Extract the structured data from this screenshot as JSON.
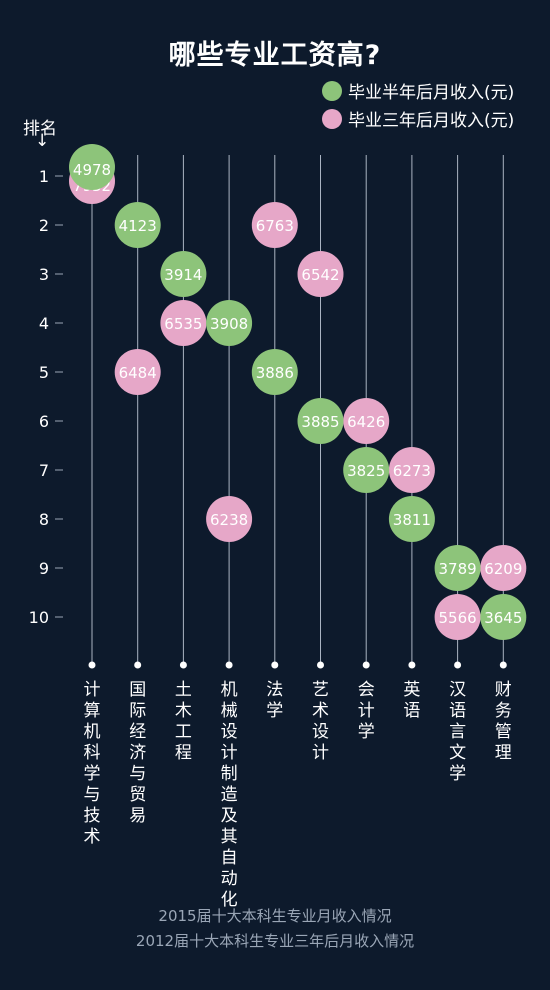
{
  "title": "哪些专业工资高?",
  "legend": [
    {
      "label": "毕业半年后月收入(元)",
      "color": "#8dc47a"
    },
    {
      "label": "毕业三年后月收入(元)",
      "color": "#e6a7c8"
    }
  ],
  "rank_header": "排名",
  "rank_arrow": "↓",
  "footer": [
    "2015届十大本科生专业月收入情况",
    "2012届十大本科生专业三年后月收入情况"
  ],
  "chart_data": {
    "type": "scatter",
    "y_axis": {
      "label": "排名",
      "ticks": [
        1,
        2,
        3,
        4,
        5,
        6,
        7,
        8,
        9,
        10
      ],
      "reversed": true
    },
    "categories": [
      "计算机科学与技术",
      "国际经济与贸易",
      "土木工程",
      "机械设计制造及其自动化",
      "法学",
      "艺术设计",
      "会计学",
      "英语",
      "汉语言文学",
      "财务管理"
    ],
    "series": [
      {
        "name": "毕业半年后月收入(元)",
        "color": "#8dc47a",
        "ranks": [
          1,
          2,
          3,
          4,
          5,
          6,
          7,
          8,
          9,
          10
        ],
        "values": [
          4978,
          4123,
          3914,
          3908,
          3886,
          3885,
          3825,
          3811,
          3789,
          3645
        ]
      },
      {
        "name": "毕业三年后月收入(元)",
        "color": "#e6a7c8",
        "ranks": [
          1,
          5,
          4,
          8,
          2,
          3,
          6,
          7,
          10,
          9
        ],
        "values": [
          7932,
          6484,
          6535,
          6238,
          6763,
          6542,
          6426,
          6273,
          5566,
          6209
        ]
      }
    ]
  }
}
